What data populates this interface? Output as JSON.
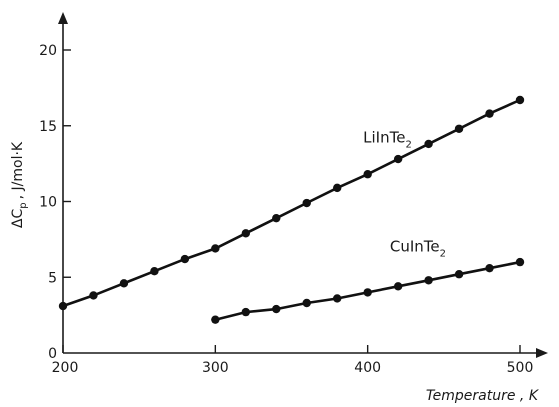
{
  "chart_data": {
    "type": "line",
    "title": "",
    "xlabel": "Temperature , K",
    "ylabel": "ΔCp , J/mol·K",
    "ylabel_main": "ΔC",
    "ylabel_sub": "p",
    "ylabel_rest": ", J/mol·K",
    "xlim": [
      200,
      520
    ],
    "ylim": [
      0,
      22
    ],
    "x_ticks": [
      200,
      300,
      400,
      500
    ],
    "y_ticks": [
      0,
      5,
      10,
      15,
      20
    ],
    "x_tick_labels": [
      "200",
      "300",
      "400",
      "500"
    ],
    "y_tick_labels": [
      "0",
      "5",
      "10",
      "15",
      "20"
    ],
    "grid": false,
    "series": [
      {
        "name": "LiInTe2",
        "label_main": "LiInTe",
        "label_sub": "2",
        "x": [
          200,
          220,
          240,
          260,
          280,
          300,
          320,
          340,
          360,
          380,
          400,
          420,
          440,
          460,
          480,
          500
        ],
        "values": [
          3.1,
          3.8,
          4.6,
          5.4,
          6.2,
          6.9,
          7.9,
          8.9,
          9.9,
          10.9,
          11.8,
          12.8,
          13.8,
          14.8,
          15.8,
          16.7
        ],
        "label_at": [
          413,
          13.9
        ]
      },
      {
        "name": "CuInTe2",
        "label_main": "CuInTe",
        "label_sub": "2",
        "x": [
          300,
          320,
          340,
          360,
          380,
          400,
          420,
          440,
          460,
          480,
          500
        ],
        "values": [
          2.2,
          2.7,
          2.9,
          3.3,
          3.6,
          4.0,
          4.4,
          4.8,
          5.2,
          5.6,
          6.0
        ],
        "label_at": [
          433,
          6.7
        ]
      }
    ]
  }
}
